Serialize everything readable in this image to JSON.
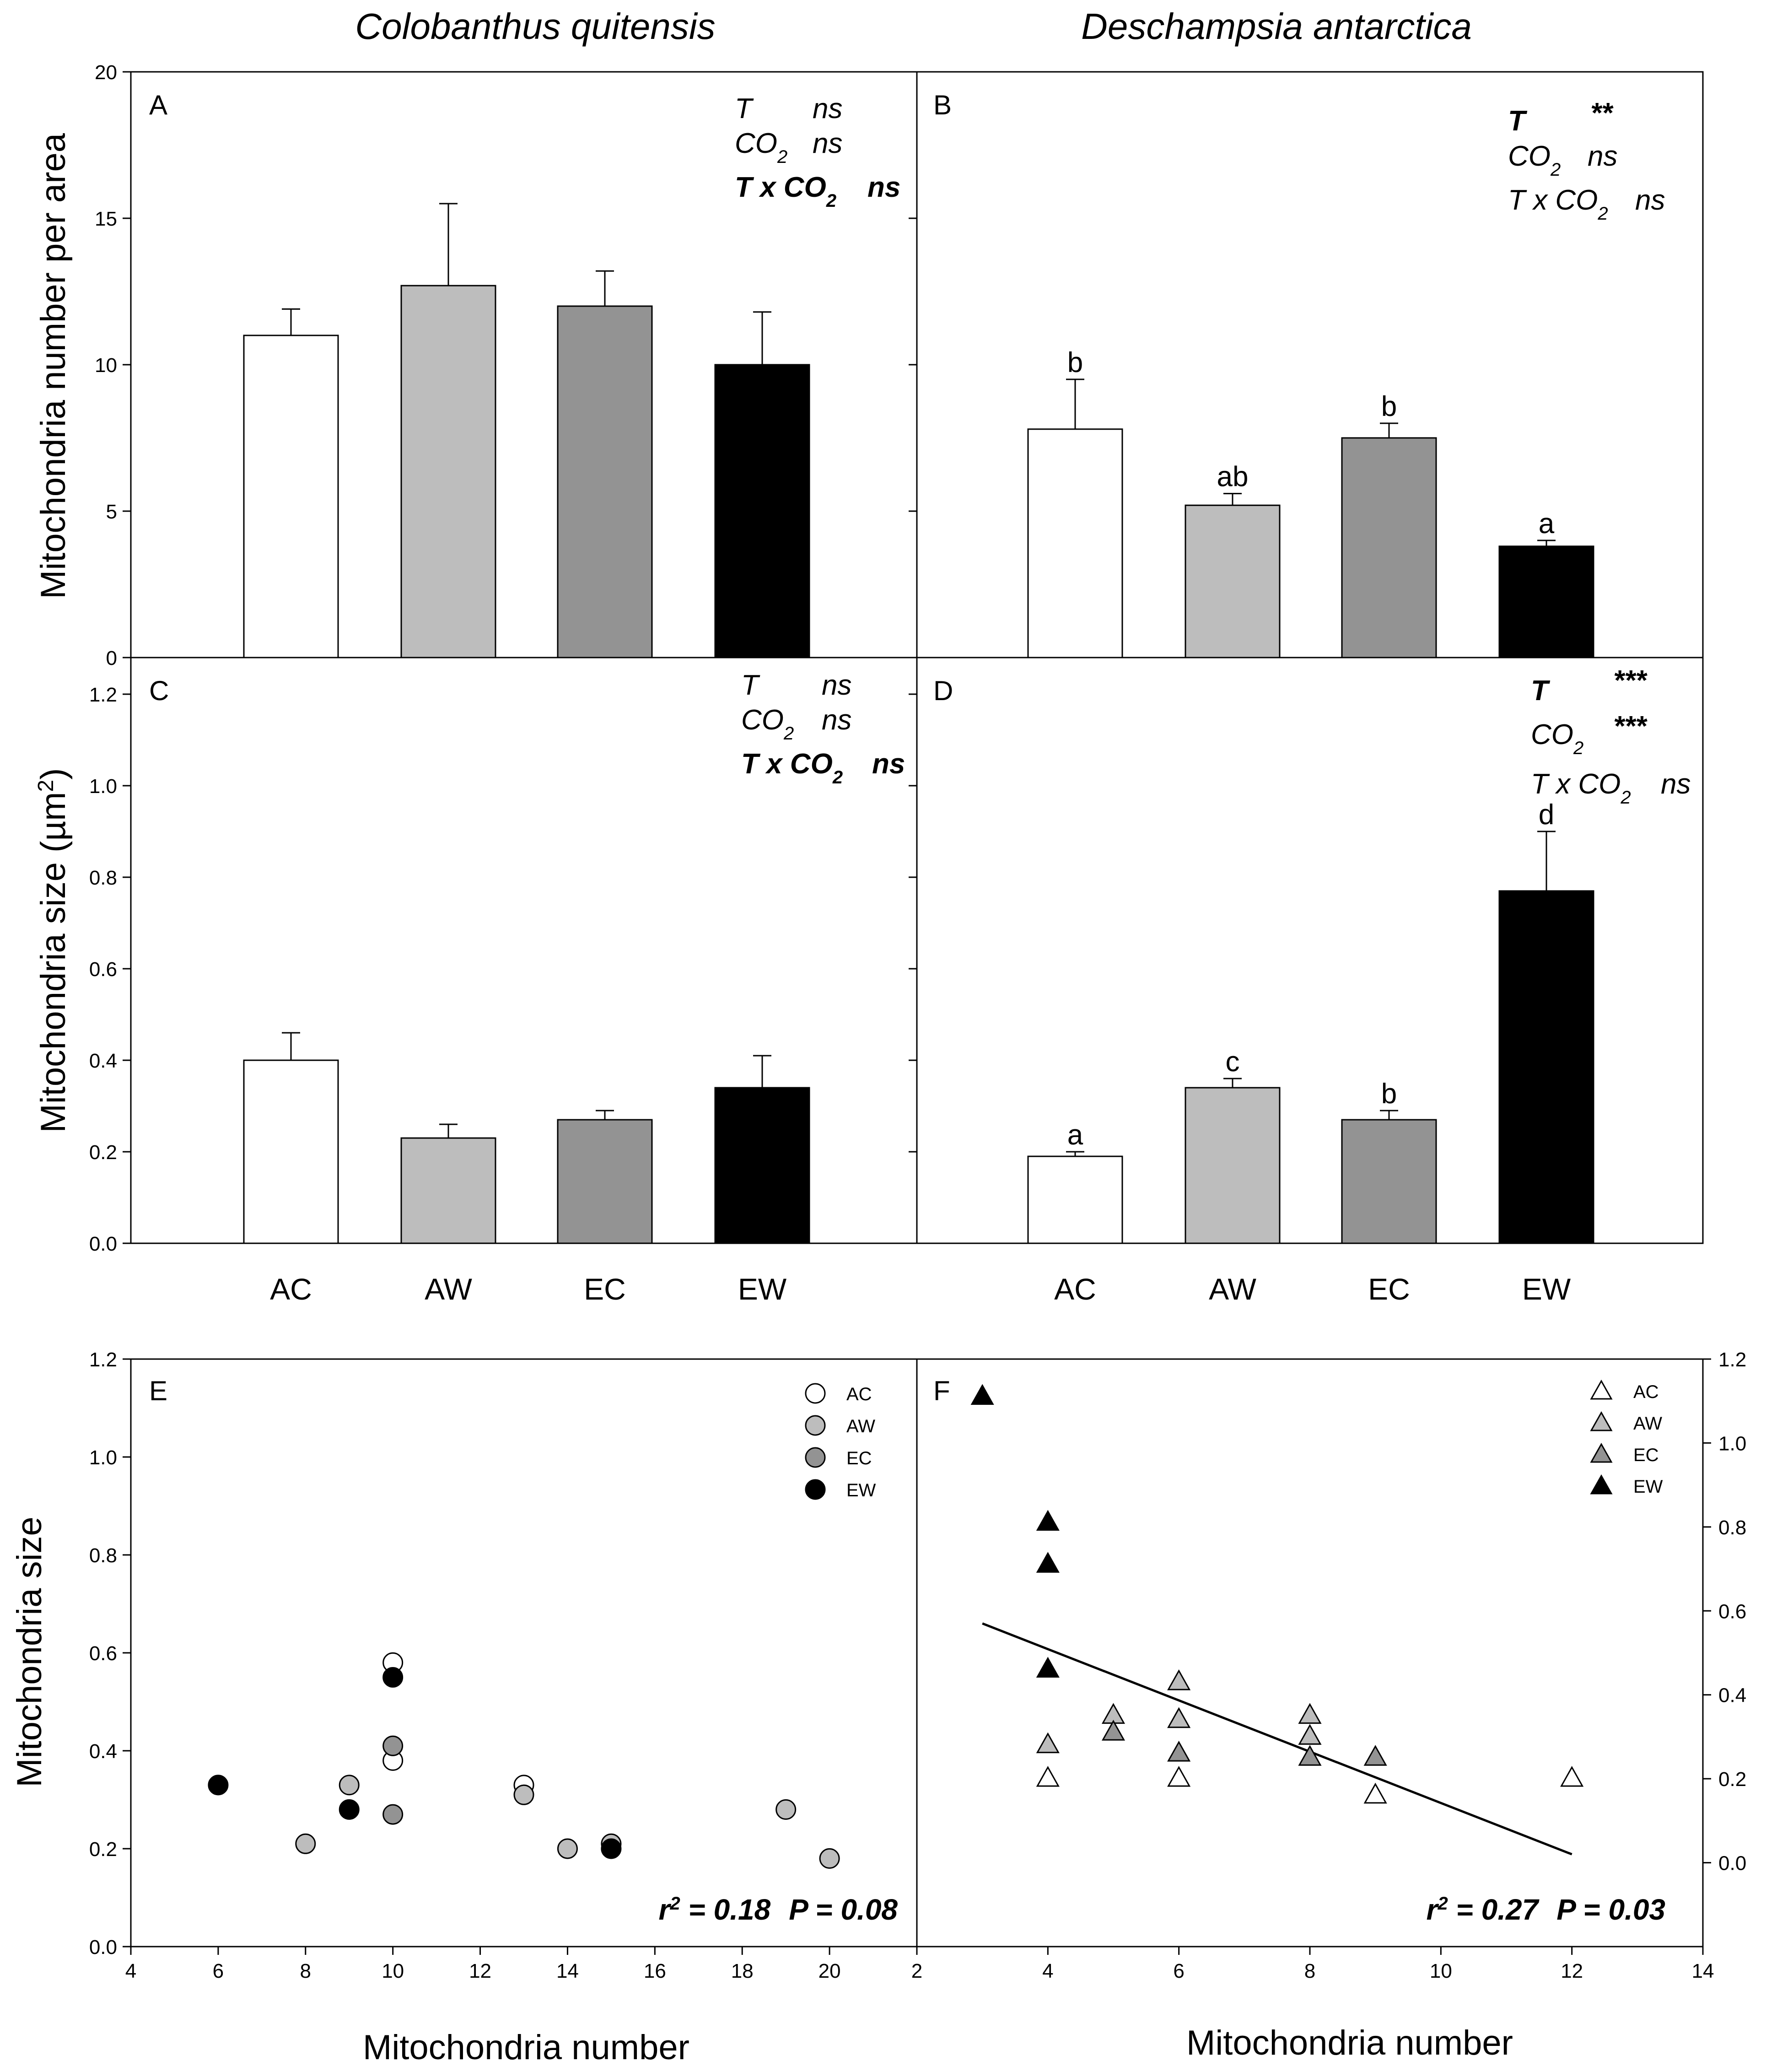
{
  "figure": {
    "species_left": "Colobanthus quitensis",
    "species_right": "Deschampsia antarctica",
    "colors": {
      "AC": "#ffffff",
      "AW": "#bdbdbd",
      "EC": "#939393",
      "EW": "#000000"
    }
  },
  "chart_data": [
    {
      "panel": "A",
      "type": "bar",
      "species": "Colobanthus quitensis",
      "categories": [
        "AC",
        "AW",
        "EC",
        "EW"
      ],
      "values": [
        11.0,
        12.7,
        12.0,
        10.0
      ],
      "errors": [
        0.9,
        2.8,
        1.2,
        1.8
      ],
      "letters": [
        "",
        "",
        "",
        ""
      ],
      "ylim": [
        0,
        20
      ],
      "yticks": [
        0,
        5,
        10,
        15,
        20
      ],
      "ylabel": "Mitochondria number per area",
      "stats": [
        {
          "term": "T",
          "sig": "ns",
          "bold": false
        },
        {
          "term": "CO",
          "sub": "2",
          "sig": "ns",
          "bold": false
        },
        {
          "term": "T x CO",
          "sub": "2",
          "sig": "ns",
          "bold": true
        }
      ]
    },
    {
      "panel": "B",
      "type": "bar",
      "species": "Deschampsia antarctica",
      "categories": [
        "AC",
        "AW",
        "EC",
        "EW"
      ],
      "values": [
        7.8,
        5.2,
        7.5,
        3.8
      ],
      "errors": [
        1.7,
        0.4,
        0.5,
        0.2
      ],
      "letters": [
        "b",
        "ab",
        "b",
        "a"
      ],
      "ylim": [
        0,
        20
      ],
      "stats": [
        {
          "term": "T",
          "sig": "**",
          "bold": true
        },
        {
          "term": "CO",
          "sub": "2",
          "sig": "ns",
          "bold": false
        },
        {
          "term": "T x CO",
          "sub": "2",
          "sig": "ns",
          "bold": false
        }
      ]
    },
    {
      "panel": "C",
      "type": "bar",
      "species": "Colobanthus quitensis",
      "categories": [
        "AC",
        "AW",
        "EC",
        "EW"
      ],
      "values": [
        0.4,
        0.23,
        0.27,
        0.34
      ],
      "errors": [
        0.06,
        0.03,
        0.02,
        0.07
      ],
      "letters": [
        "",
        "",
        "",
        ""
      ],
      "ylim": [
        0,
        1.28
      ],
      "yticks": [
        "0.0",
        "0.2",
        "0.4",
        "0.6",
        "0.8",
        "1.0",
        "1.2"
      ],
      "ylabel": "Mitochondria size (µm",
      "ylabel_sup": "2",
      "ylabel_end": ")",
      "stats": [
        {
          "term": "T",
          "sig": "ns",
          "bold": false
        },
        {
          "term": "CO",
          "sub": "2",
          "sig": "ns",
          "bold": false
        },
        {
          "term": "T x CO",
          "sub": "2",
          "sig": "ns",
          "bold": true
        }
      ]
    },
    {
      "panel": "D",
      "type": "bar",
      "species": "Deschampsia antarctica",
      "categories": [
        "AC",
        "AW",
        "EC",
        "EW"
      ],
      "values": [
        0.19,
        0.34,
        0.27,
        0.77
      ],
      "errors": [
        0.01,
        0.02,
        0.02,
        0.13
      ],
      "letters": [
        "a",
        "c",
        "b",
        "d"
      ],
      "ylim": [
        0,
        1.28
      ],
      "stats": [
        {
          "term": "T",
          "sig": "***",
          "bold": true
        },
        {
          "term": "CO",
          "sub": "2",
          "sig": "***",
          "bold": true
        },
        {
          "term": "T x CO",
          "sub": "2",
          "sig": "ns",
          "bold": false
        }
      ]
    },
    {
      "panel": "E",
      "type": "scatter",
      "marker": "circle",
      "xlim": [
        4,
        22
      ],
      "xticks": [
        4,
        6,
        8,
        10,
        12,
        14,
        16,
        18,
        20
      ],
      "ylim": [
        0,
        1.2
      ],
      "yticks": [
        "0.0",
        "0.2",
        "0.4",
        "0.6",
        "0.8",
        "1.0",
        "1.2"
      ],
      "xlabel": "Mitochondria number",
      "ylabel": "Mitochondria size",
      "legend": [
        "AC",
        "AW",
        "EC",
        "EW"
      ],
      "series": [
        {
          "name": "AC",
          "points": [
            [
              10,
              0.58
            ],
            [
              10,
              0.38
            ],
            [
              13,
              0.33
            ]
          ]
        },
        {
          "name": "AW",
          "points": [
            [
              8,
              0.21
            ],
            [
              9,
              0.33
            ],
            [
              13,
              0.31
            ],
            [
              14,
              0.2
            ],
            [
              15,
              0.21
            ],
            [
              19,
              0.28
            ],
            [
              20,
              0.18
            ]
          ]
        },
        {
          "name": "EC",
          "points": [
            [
              10,
              0.41
            ],
            [
              10,
              0.27
            ]
          ]
        },
        {
          "name": "EW",
          "points": [
            [
              6,
              0.33
            ],
            [
              9,
              0.28
            ],
            [
              10,
              0.55
            ],
            [
              15,
              0.2
            ]
          ]
        }
      ],
      "annotation": {
        "r2_label": "r",
        "r2_sup": "2",
        "r2_value": " = 0.18",
        "p_text": "P = 0.08"
      }
    },
    {
      "panel": "F",
      "type": "scatter",
      "marker": "triangle",
      "xlim": [
        2,
        14
      ],
      "xticks": [
        2,
        4,
        6,
        8,
        10,
        12,
        14
      ],
      "ylim": [
        -0.2,
        1.2
      ],
      "yticks": [
        "0.0",
        "0.2",
        "0.4",
        "0.6",
        "0.8",
        "1.0",
        "1.2"
      ],
      "xlabel": "Mitochondria number",
      "legend": [
        "AC",
        "AW",
        "EC",
        "EW"
      ],
      "series": [
        {
          "name": "AC",
          "points": [
            [
              4,
              0.2
            ],
            [
              6,
              0.2
            ],
            [
              9,
              0.16
            ],
            [
              12,
              0.2
            ]
          ]
        },
        {
          "name": "AW",
          "points": [
            [
              4,
              0.28
            ],
            [
              5,
              0.35
            ],
            [
              6,
              0.43
            ],
            [
              6,
              0.34
            ],
            [
              8,
              0.35
            ],
            [
              8,
              0.3
            ]
          ]
        },
        {
          "name": "EC",
          "points": [
            [
              5,
              0.31
            ],
            [
              6,
              0.26
            ],
            [
              8,
              0.25
            ],
            [
              9,
              0.25
            ]
          ]
        },
        {
          "name": "EW",
          "points": [
            [
              3,
              1.11
            ],
            [
              4,
              0.81
            ],
            [
              4,
              0.71
            ],
            [
              4,
              0.46
            ]
          ]
        }
      ],
      "fit": {
        "x": [
          3,
          12
        ],
        "y": [
          0.57,
          0.02
        ]
      },
      "annotation": {
        "r2_label": "r",
        "r2_sup": "2",
        "r2_value": " = 0.27",
        "p_text": "P = 0.03"
      }
    }
  ]
}
